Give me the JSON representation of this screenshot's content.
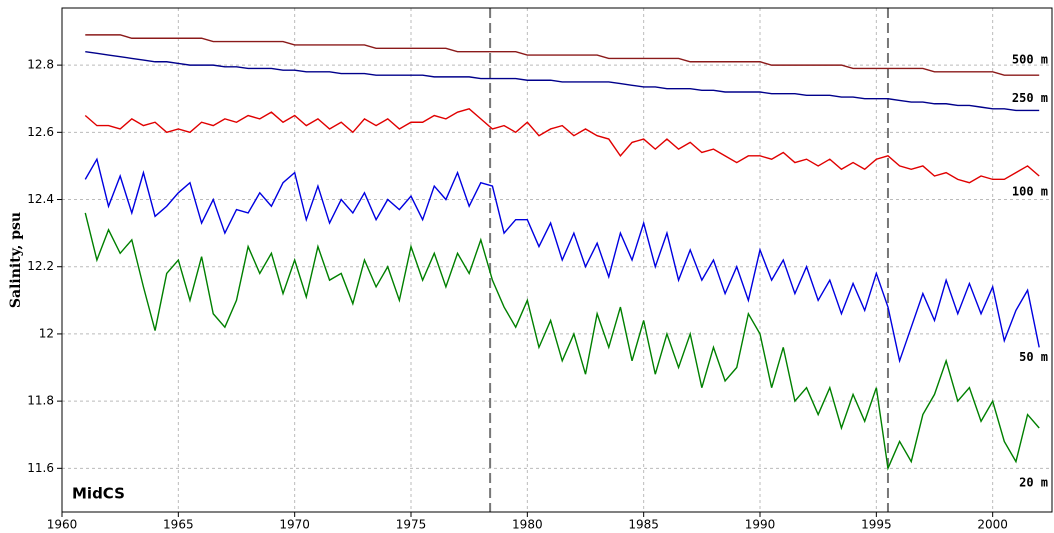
{
  "chart_data": {
    "type": "line",
    "ylabel": "Salinity, psu",
    "annotation": "MidCS",
    "x": [
      1961,
      1961.5,
      1962,
      1962.5,
      1963,
      1963.5,
      1964,
      1964.5,
      1965,
      1965.5,
      1966,
      1966.5,
      1967,
      1967.5,
      1968,
      1968.5,
      1969,
      1969.5,
      1970,
      1970.5,
      1971,
      1971.5,
      1972,
      1972.5,
      1973,
      1973.5,
      1974,
      1974.5,
      1975,
      1975.5,
      1976,
      1976.5,
      1977,
      1977.5,
      1978,
      1978.5,
      1979,
      1979.5,
      1980,
      1980.5,
      1981,
      1981.5,
      1982,
      1982.5,
      1983,
      1983.5,
      1984,
      1984.5,
      1985,
      1985.5,
      1986,
      1986.5,
      1987,
      1987.5,
      1988,
      1988.5,
      1989,
      1989.5,
      1990,
      1990.5,
      1991,
      1991.5,
      1992,
      1992.5,
      1993,
      1993.5,
      1994,
      1994.5,
      1995,
      1995.5,
      1996,
      1996.5,
      1997,
      1997.5,
      1998,
      1998.5,
      1999,
      1999.5,
      2000,
      2000.5,
      2001,
      2001.5,
      2002
    ],
    "series": [
      {
        "name": "500 m",
        "color": "#8b1a1a",
        "values": [
          12.89,
          12.89,
          12.89,
          12.89,
          12.88,
          12.88,
          12.88,
          12.88,
          12.88,
          12.88,
          12.88,
          12.87,
          12.87,
          12.87,
          12.87,
          12.87,
          12.87,
          12.87,
          12.86,
          12.86,
          12.86,
          12.86,
          12.86,
          12.86,
          12.86,
          12.85,
          12.85,
          12.85,
          12.85,
          12.85,
          12.85,
          12.85,
          12.84,
          12.84,
          12.84,
          12.84,
          12.84,
          12.84,
          12.83,
          12.83,
          12.83,
          12.83,
          12.83,
          12.83,
          12.83,
          12.82,
          12.82,
          12.82,
          12.82,
          12.82,
          12.82,
          12.82,
          12.81,
          12.81,
          12.81,
          12.81,
          12.81,
          12.81,
          12.81,
          12.8,
          12.8,
          12.8,
          12.8,
          12.8,
          12.8,
          12.8,
          12.79,
          12.79,
          12.79,
          12.79,
          12.79,
          12.79,
          12.79,
          12.78,
          12.78,
          12.78,
          12.78,
          12.78,
          12.78,
          12.77,
          12.77,
          12.77,
          12.77
        ]
      },
      {
        "name": "250 m",
        "color": "#00008b",
        "values": [
          12.84,
          12.835,
          12.83,
          12.825,
          12.82,
          12.815,
          12.81,
          12.81,
          12.805,
          12.8,
          12.8,
          12.8,
          12.795,
          12.795,
          12.79,
          12.79,
          12.79,
          12.785,
          12.785,
          12.78,
          12.78,
          12.78,
          12.775,
          12.775,
          12.775,
          12.77,
          12.77,
          12.77,
          12.77,
          12.77,
          12.765,
          12.765,
          12.765,
          12.765,
          12.76,
          12.76,
          12.76,
          12.76,
          12.755,
          12.755,
          12.755,
          12.75,
          12.75,
          12.75,
          12.75,
          12.75,
          12.745,
          12.74,
          12.735,
          12.735,
          12.73,
          12.73,
          12.73,
          12.725,
          12.725,
          12.72,
          12.72,
          12.72,
          12.72,
          12.715,
          12.715,
          12.715,
          12.71,
          12.71,
          12.71,
          12.705,
          12.705,
          12.7,
          12.7,
          12.7,
          12.695,
          12.69,
          12.69,
          12.685,
          12.685,
          12.68,
          12.68,
          12.675,
          12.67,
          12.67,
          12.665,
          12.665,
          12.665
        ]
      },
      {
        "name": "100 m",
        "color": "#e00000",
        "values": [
          12.65,
          12.62,
          12.62,
          12.61,
          12.64,
          12.62,
          12.63,
          12.6,
          12.61,
          12.6,
          12.63,
          12.62,
          12.64,
          12.63,
          12.65,
          12.64,
          12.66,
          12.63,
          12.65,
          12.62,
          12.64,
          12.61,
          12.63,
          12.6,
          12.64,
          12.62,
          12.64,
          12.61,
          12.63,
          12.63,
          12.65,
          12.64,
          12.66,
          12.67,
          12.64,
          12.61,
          12.62,
          12.6,
          12.63,
          12.59,
          12.61,
          12.62,
          12.59,
          12.61,
          12.59,
          12.58,
          12.53,
          12.57,
          12.58,
          12.55,
          12.58,
          12.55,
          12.57,
          12.54,
          12.55,
          12.53,
          12.51,
          12.53,
          12.53,
          12.52,
          12.54,
          12.51,
          12.52,
          12.5,
          12.52,
          12.49,
          12.51,
          12.49,
          12.52,
          12.53,
          12.5,
          12.49,
          12.5,
          12.47,
          12.48,
          12.46,
          12.45,
          12.47,
          12.46,
          12.46,
          12.48,
          12.5,
          12.47
        ]
      },
      {
        "name": "50 m",
        "color": "#0000e0",
        "values": [
          12.46,
          12.52,
          12.38,
          12.47,
          12.36,
          12.48,
          12.35,
          12.38,
          12.42,
          12.45,
          12.33,
          12.4,
          12.3,
          12.37,
          12.36,
          12.42,
          12.38,
          12.45,
          12.48,
          12.34,
          12.44,
          12.33,
          12.4,
          12.36,
          12.42,
          12.34,
          12.4,
          12.37,
          12.41,
          12.34,
          12.44,
          12.4,
          12.48,
          12.38,
          12.45,
          12.44,
          12.3,
          12.34,
          12.34,
          12.26,
          12.33,
          12.22,
          12.3,
          12.2,
          12.27,
          12.17,
          12.3,
          12.22,
          12.33,
          12.2,
          12.3,
          12.16,
          12.25,
          12.16,
          12.22,
          12.12,
          12.2,
          12.1,
          12.25,
          12.16,
          12.22,
          12.12,
          12.2,
          12.1,
          12.16,
          12.06,
          12.15,
          12.07,
          12.18,
          12.08,
          11.92,
          12.02,
          12.12,
          12.04,
          12.16,
          12.06,
          12.15,
          12.06,
          12.14,
          11.98,
          12.07,
          12.13,
          11.96
        ]
      },
      {
        "name": "20 m",
        "color": "#008000",
        "values": [
          12.36,
          12.22,
          12.31,
          12.24,
          12.28,
          12.14,
          12.01,
          12.18,
          12.22,
          12.1,
          12.23,
          12.06,
          12.02,
          12.1,
          12.26,
          12.18,
          12.24,
          12.12,
          12.22,
          12.11,
          12.26,
          12.16,
          12.18,
          12.09,
          12.22,
          12.14,
          12.2,
          12.1,
          12.26,
          12.16,
          12.24,
          12.14,
          12.24,
          12.18,
          12.28,
          12.16,
          12.08,
          12.02,
          12.1,
          11.96,
          12.04,
          11.92,
          12.0,
          11.88,
          12.06,
          11.96,
          12.08,
          11.92,
          12.04,
          11.88,
          12.0,
          11.9,
          12.0,
          11.84,
          11.96,
          11.86,
          11.9,
          12.06,
          12.0,
          11.84,
          11.96,
          11.8,
          11.84,
          11.76,
          11.84,
          11.72,
          11.82,
          11.74,
          11.84,
          11.6,
          11.68,
          11.62,
          11.76,
          11.82,
          11.92,
          11.8,
          11.84,
          11.74,
          11.8,
          11.68,
          11.62,
          11.76,
          11.72
        ]
      }
    ],
    "xlim": [
      1960,
      2002.55
    ],
    "xticks": [
      1960,
      1965,
      1970,
      1975,
      1980,
      1985,
      1990,
      1995,
      2000
    ],
    "ylim": [
      11.47,
      12.97
    ],
    "yticks": [
      11.6,
      11.8,
      12,
      12.2,
      12.4,
      12.6,
      12.8
    ],
    "vlines": [
      1978.4,
      1995.5
    ],
    "grid": true
  }
}
